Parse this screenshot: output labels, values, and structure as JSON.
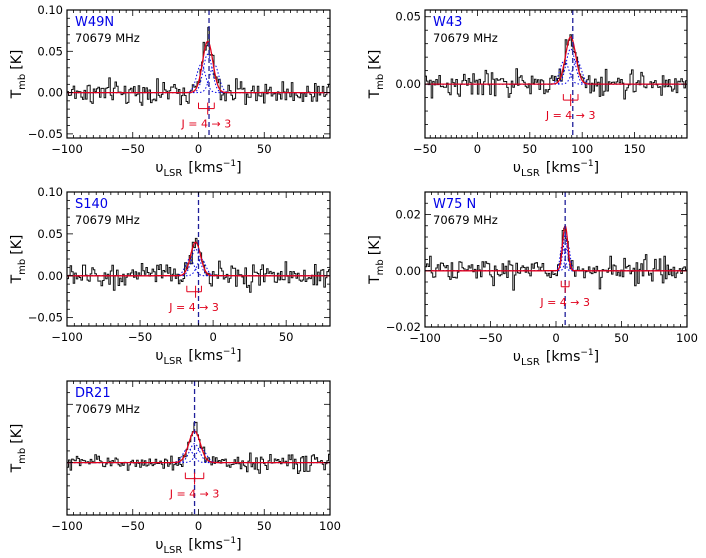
{
  "chart_data": [
    {
      "type": "line",
      "source": "W49N",
      "frequency": "70679 MHz",
      "xlabel_main": "υ",
      "xlabel_sub": "LSR",
      "xlabel_unit": "[kms",
      "xlabel_exp": "−1",
      "xlabel_close": "]",
      "ylabel_main": "T",
      "ylabel_sub": "mb",
      "ylabel_unit": "[K]",
      "xlim": [
        -100,
        100
      ],
      "ylim": [
        -0.055,
        0.1
      ],
      "xticks": [
        -100,
        -50,
        0,
        50
      ],
      "yticks": [
        -0.05,
        0.0,
        0.05,
        0.1
      ],
      "ytick_labels": [
        "−0.05",
        "0.00",
        "0.05",
        "0.10"
      ],
      "dashed_line_x": 8,
      "line_center": 7,
      "fit_amplitude": 0.062,
      "fit_width": 8,
      "hf_components": [
        {
          "offset": -5,
          "fraction": 0.55
        },
        {
          "offset": 0,
          "fraction": 0.75
        },
        {
          "offset": 5,
          "fraction": 0.55
        }
      ],
      "noise_rms": 0.012,
      "transition_label": "J = 4 → 3",
      "bracket_x": [
        0,
        7,
        12
      ]
    },
    {
      "type": "line",
      "source": "W43",
      "frequency": "70679 MHz",
      "xlabel_main": "υ",
      "xlabel_sub": "LSR",
      "xlabel_unit": "[kms",
      "xlabel_exp": "−1",
      "xlabel_close": "]",
      "ylabel_main": "T",
      "ylabel_sub": "mb",
      "ylabel_unit": "[K]",
      "xlim": [
        -50,
        200
      ],
      "ylim": [
        -0.04,
        0.055
      ],
      "xticks": [
        -50,
        0,
        50,
        100,
        150
      ],
      "yticks": [
        0.0,
        0.05
      ],
      "ytick_labels": [
        "0.00",
        "0.05"
      ],
      "dashed_line_x": 91,
      "line_center": 89,
      "fit_amplitude": 0.035,
      "fit_width": 10,
      "hf_components": [
        {
          "offset": -6,
          "fraction": 0.5
        },
        {
          "offset": 0,
          "fraction": 0.75
        },
        {
          "offset": 6,
          "fraction": 0.5
        }
      ],
      "noise_rms": 0.008,
      "transition_label": "J = 4 → 3",
      "bracket_x": [
        82,
        89,
        96
      ]
    },
    {
      "type": "line",
      "source": "S140",
      "frequency": "70679 MHz",
      "xlabel_main": "υ",
      "xlabel_sub": "LSR",
      "xlabel_unit": "[kms",
      "xlabel_exp": "−1",
      "xlabel_close": "]",
      "ylabel_main": "T",
      "ylabel_sub": "mb",
      "ylabel_unit": "[K]",
      "xlim": [
        -100,
        80
      ],
      "ylim": [
        -0.06,
        0.1
      ],
      "xticks": [
        -100,
        -50,
        0,
        50
      ],
      "yticks": [
        -0.05,
        0.0,
        0.05,
        0.1
      ],
      "ytick_labels": [
        "−0.05",
        "0.00",
        "0.05",
        "0.10"
      ],
      "dashed_line_x": -10,
      "line_center": -12,
      "fit_amplitude": 0.04,
      "fit_width": 7,
      "hf_components": [
        {
          "offset": -4,
          "fraction": 0.5
        },
        {
          "offset": 0,
          "fraction": 0.8
        },
        {
          "offset": 4,
          "fraction": 0.5
        }
      ],
      "noise_rms": 0.012,
      "transition_label": "J = 4 → 3",
      "bracket_x": [
        -18,
        -12,
        -8
      ]
    },
    {
      "type": "line",
      "source": "W75 N",
      "frequency": "70679 MHz",
      "xlabel_main": "υ",
      "xlabel_sub": "LSR",
      "xlabel_unit": "[kms",
      "xlabel_exp": "−1",
      "xlabel_close": "]",
      "ylabel_main": "T",
      "ylabel_sub": "mb",
      "ylabel_unit": "[K]",
      "xlim": [
        -100,
        100
      ],
      "ylim": [
        -0.02,
        0.028
      ],
      "xticks": [
        -100,
        -50,
        0,
        50,
        100
      ],
      "yticks": [
        -0.02,
        0.0,
        0.02
      ],
      "ytick_labels": [
        "−0.02",
        "0.00",
        "0.02"
      ],
      "dashed_line_x": 7,
      "line_center": 7,
      "fit_amplitude": 0.016,
      "fit_width": 4,
      "hf_components": [
        {
          "offset": -2,
          "fraction": 0.6
        },
        {
          "offset": 0,
          "fraction": 0.8
        },
        {
          "offset": 2,
          "fraction": 0.6
        }
      ],
      "noise_rms": 0.004,
      "transition_label": "J = 4 → 3",
      "bracket_x": [
        4,
        7,
        10
      ]
    },
    {
      "type": "line",
      "source": "DR21",
      "frequency": "70679 MHz",
      "xlabel_main": "υ",
      "xlabel_sub": "LSR",
      "xlabel_unit": "[kms",
      "xlabel_exp": "−1",
      "xlabel_close": "]",
      "ylabel_main": "T",
      "ylabel_sub": "mb",
      "ylabel_unit": "[K]",
      "xlim": [
        -100,
        100
      ],
      "ylim": [
        -0.045,
        0.07
      ],
      "xticks": [
        -100,
        -50,
        0,
        50,
        100
      ],
      "yticks": [],
      "ytick_labels": [],
      "dashed_line_x": -3,
      "line_center": -3,
      "fit_amplitude": 0.027,
      "fit_width": 9,
      "hf_components": [
        {
          "offset": -5,
          "fraction": 0.45
        },
        {
          "offset": 0,
          "fraction": 0.6
        },
        {
          "offset": 5,
          "fraction": 0.45
        }
      ],
      "noise_rms": 0.006,
      "transition_label": "J = 4 → 3",
      "bracket_x": [
        -10,
        -3,
        4
      ]
    }
  ]
}
